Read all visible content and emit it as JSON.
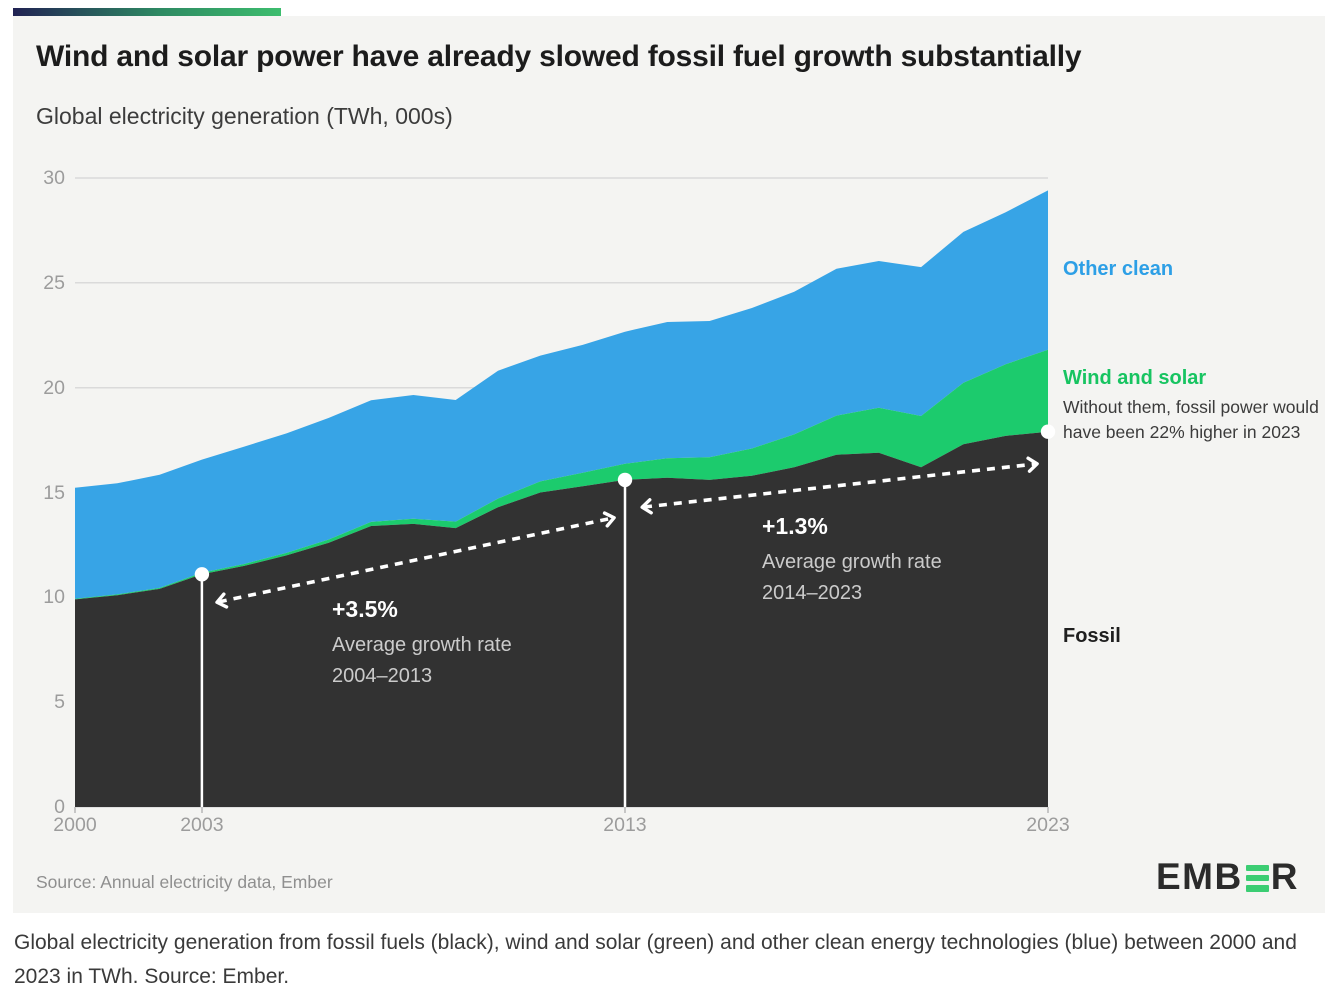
{
  "header": {
    "title": "Wind and solar power have already slowed fossil fuel growth substantially",
    "subtitle": "Global electricity generation (TWh, 000s)"
  },
  "chart_data": {
    "type": "area",
    "stacked": true,
    "title": "Global electricity generation (TWh, 000s)",
    "x": [
      2000,
      2001,
      2002,
      2003,
      2004,
      2005,
      2006,
      2007,
      2008,
      2009,
      2010,
      2011,
      2012,
      2013,
      2014,
      2015,
      2016,
      2017,
      2018,
      2019,
      2020,
      2021,
      2022,
      2023
    ],
    "series": [
      {
        "name": "Fossil",
        "color": "#323232",
        "values": [
          9.9,
          10.1,
          10.4,
          11.1,
          11.5,
          12.0,
          12.6,
          13.4,
          13.5,
          13.3,
          14.3,
          15.0,
          15.3,
          15.6,
          15.7,
          15.6,
          15.8,
          16.2,
          16.8,
          16.9,
          16.2,
          17.3,
          17.7,
          17.9
        ]
      },
      {
        "name": "Wind and solar",
        "color": "#1ccb6d",
        "values": [
          0.03,
          0.04,
          0.05,
          0.07,
          0.09,
          0.12,
          0.16,
          0.2,
          0.25,
          0.31,
          0.41,
          0.53,
          0.64,
          0.77,
          0.93,
          1.08,
          1.3,
          1.57,
          1.87,
          2.14,
          2.45,
          2.93,
          3.42,
          3.91
        ]
      },
      {
        "name": "Other clean",
        "color": "#37a4e6",
        "values": [
          5.3,
          5.3,
          5.4,
          5.4,
          5.6,
          5.7,
          5.8,
          5.8,
          5.9,
          5.8,
          6.1,
          6.0,
          6.1,
          6.3,
          6.5,
          6.5,
          6.7,
          6.8,
          7.0,
          7.0,
          7.1,
          7.2,
          7.25,
          7.6
        ]
      }
    ],
    "ylim": [
      0,
      30
    ],
    "yticks": [
      0,
      5,
      10,
      15,
      20,
      25,
      30
    ],
    "xticks": [
      2000,
      2003,
      2013,
      2023
    ],
    "grid": true,
    "legend_position": "right",
    "markers": [
      {
        "year": 2003,
        "value": 11.1,
        "drop_line": true
      },
      {
        "year": 2013,
        "value": 15.6,
        "drop_line": true
      },
      {
        "year": 2023,
        "value": 17.9,
        "drop_line": false
      }
    ],
    "arrows": [
      {
        "from_year": 2003.4,
        "from_value": 9.78,
        "to_year": 2012.7,
        "to_value": 13.78
      },
      {
        "from_year": 2013.45,
        "from_value": 14.31,
        "to_year": 2022.7,
        "to_value": 16.36
      }
    ]
  },
  "annotations": {
    "growth1": {
      "rate": "+3.5%",
      "line1": "Average growth rate",
      "line2": "2004–2013"
    },
    "growth2": {
      "rate": "+1.3%",
      "line1": "Average growth rate",
      "line2": "2014–2023"
    }
  },
  "labels": {
    "other_clean": "Other clean",
    "wind_solar": "Wind and solar",
    "wind_solar_note": "Without them, fossil power would have been 22% higher in 2023",
    "fossil": "Fossil"
  },
  "footer": {
    "source": "Source: Annual electricity data, Ember",
    "logo_left": "EMB",
    "logo_right": "R"
  },
  "caption": "Global electricity generation from fossil fuels (black), wind and solar (green) and other clean energy technologies (blue) between 2000 and 2023 in TWh. Source: Ember.",
  "colors": {
    "fossil": "#323232",
    "wind_solar": "#1ccb6d",
    "other_clean": "#37a4e6",
    "wind_solar_text": "#17c461",
    "other_clean_text": "#2d9fe6",
    "card_bg": "#f4f4f2",
    "gridline": "#dadada"
  }
}
